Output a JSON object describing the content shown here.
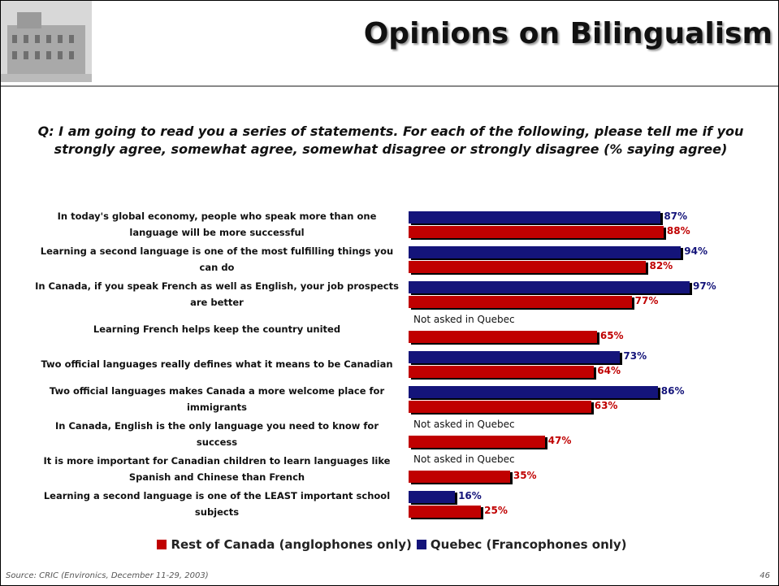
{
  "chart_data": {
    "type": "bar",
    "orientation": "horizontal",
    "title": "Opinions on Bilingualism",
    "subtitle": "Q: I am going to read you a series of statements.  For each of the following, please tell me if you strongly agree, somewhat agree, somewhat disagree or strongly disagree (% saying agree)",
    "categories": [
      "In today's global economy, people who speak more than one language will be more successful",
      "Learning a second language is one of the most fulfilling things you can do",
      "In Canada, if you speak French as well as English, your job prospects are better",
      "Learning French helps keep the country united",
      "Two official languages really defines what it means to be Canadian",
      "Two official languages makes Canada a more welcome place for immigrants",
      "In Canada, English is the only language you need to know for success",
      "It is more important for Canadian children to learn languages like Spanish and Chinese than French",
      "Learning a second language is one of the LEAST important school subjects"
    ],
    "series": [
      {
        "name": "Rest of Canada (anglophones only)",
        "color": "#c00000",
        "values": [
          88,
          82,
          77,
          65,
          64,
          63,
          47,
          35,
          25
        ],
        "value_labels": [
          "88%",
          "82%",
          "77%",
          "65%",
          "64%",
          "63%",
          "47%",
          "35%",
          "25%"
        ]
      },
      {
        "name": "Quebec (Francophones only)",
        "color": "#14147a",
        "values": [
          87,
          94,
          97,
          null,
          73,
          86,
          null,
          null,
          16
        ],
        "value_labels": [
          "87%",
          "94%",
          "97%",
          null,
          "73%",
          "86%",
          null,
          null,
          "16%"
        ]
      }
    ],
    "missing_note": "Not asked in Quebec",
    "xlim": [
      0,
      100
    ],
    "source": "Source: CRIC (Environics, December 11-29, 2003)",
    "page_number": "46"
  }
}
